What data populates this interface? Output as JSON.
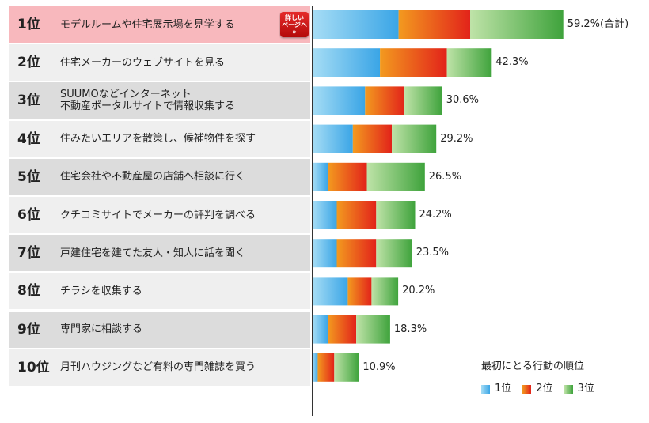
{
  "chart_data": {
    "type": "bar",
    "orientation": "horizontal",
    "stacked": true,
    "title": "",
    "categories": [
      "モデルルームや住宅展示場を見学する",
      "住宅メーカーのウェブサイトを見る",
      "SUUMOなどインターネット\n不動産ポータルサイトで情報収集する",
      "住みたいエリアを散策し、候補物件を探す",
      "住宅会社や不動産屋の店舗へ相談に行く",
      "クチコミサイトでメーカーの評判を調べる",
      "戸建住宅を建てた友人・知人に話を聞く",
      "チラシを収集する",
      "専門家に相談する",
      "月刊ハウジングなど有料の専門雑誌を買う"
    ],
    "ranks": [
      "1位",
      "2位",
      "3位",
      "4位",
      "5位",
      "6位",
      "7位",
      "8位",
      "9位",
      "10位"
    ],
    "series": [
      {
        "name": "1位",
        "values": [
          20.3,
          15.9,
          12.4,
          9.5,
          3.6,
          5.7,
          5.7,
          8.3,
          3.6,
          1.2
        ]
      },
      {
        "name": "2位",
        "values": [
          16.9,
          15.8,
          9.3,
          9.2,
          9.2,
          9.3,
          9.3,
          5.6,
          6.7,
          3.9
        ]
      },
      {
        "name": "3位",
        "values": [
          22.0,
          10.6,
          8.9,
          10.5,
          13.7,
          9.2,
          8.5,
          6.3,
          8.0,
          5.8
        ]
      }
    ],
    "totals_label": [
      "59.2%",
      "42.3%",
      "30.6%",
      "29.2%",
      "26.5%",
      "24.2%",
      "23.5%",
      "20.2%",
      "18.3%",
      "10.9%"
    ],
    "total_suffix_first": "(合計)",
    "xlim": [
      0,
      100
    ],
    "grid": false,
    "legend": {
      "title": "最初にとる行動の順位",
      "position": "bottom-right",
      "entries": [
        "1位",
        "2位",
        "3位"
      ]
    }
  },
  "badge": {
    "line1": "詳しい",
    "line2": "ページへ",
    "arrow": "»"
  },
  "colors": {
    "rank1": [
      "#a6ddf5",
      "#3aa5e6"
    ],
    "rank2": [
      "#f39a1f",
      "#e2231a"
    ],
    "rank3": [
      "#bfe3a8",
      "#3fa33c"
    ],
    "row_highlight": "#f8b8bd",
    "row_dark": "#dcdcdc",
    "row_light": "#efefef"
  }
}
